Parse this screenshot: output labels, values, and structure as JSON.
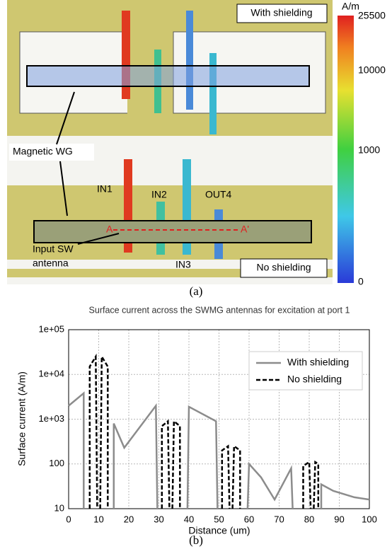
{
  "panel_a": {
    "labels": {
      "with_shielding": "With shielding",
      "magnetic_wg": "Magnetic WG",
      "in1": "IN1",
      "in2": "IN2",
      "out4": "OUT4",
      "in3": "IN3",
      "a": "A",
      "a_prime": "A'",
      "input_sw": "Input SW",
      "antenna": "antenna",
      "no_shielding": "No shielding"
    },
    "colorbar": {
      "unit": "A/m",
      "ticks": [
        25500,
        10000,
        1000,
        0
      ]
    }
  },
  "captions": [
    "(a)",
    "(b)"
  ],
  "chart_data": {
    "type": "line",
    "title": "Surface current across the SWMG antennas for excitation at port 1",
    "xlabel": "Distance (um)",
    "ylabel": "Surface current (A/m)",
    "xlim": [
      0,
      100
    ],
    "xticks": [
      0,
      10,
      20,
      30,
      40,
      50,
      60,
      70,
      80,
      90,
      100
    ],
    "ylim": [
      10,
      100000
    ],
    "ylog": true,
    "yticks": [
      10,
      100,
      {
        "value": 1000,
        "label": "1e+03"
      },
      {
        "value": 10000,
        "label": "1e+04"
      },
      {
        "value": 100000,
        "label": "1e+05"
      }
    ],
    "grid": true,
    "legend": "top-right",
    "series": [
      {
        "name": "With shielding",
        "color": "#8c8c8c",
        "dash": false,
        "x": [
          0,
          5,
          5,
          null,
          15,
          15,
          18.5,
          29,
          29.5,
          null,
          39.5,
          40,
          49,
          49.5,
          null,
          59.5,
          60,
          64,
          68.5,
          74,
          74.5,
          null,
          84,
          84,
          88,
          95,
          100
        ],
        "values": [
          2000,
          3800,
          10,
          null,
          10,
          800,
          230,
          2000,
          10,
          null,
          10,
          1900,
          900,
          10,
          null,
          10,
          100,
          50,
          16,
          80,
          10,
          null,
          10,
          35,
          25,
          18,
          16
        ]
      },
      {
        "name": "No shielding",
        "color": "#000000",
        "dash": true,
        "x": [
          7,
          7,
          9,
          9.5,
          null,
          10.5,
          11,
          13,
          13,
          null,
          31,
          31,
          33,
          33.5,
          null,
          34.5,
          35,
          37,
          37,
          null,
          51,
          51,
          53,
          53.5,
          null,
          54.5,
          55,
          57,
          57,
          null,
          78,
          78,
          80,
          80.5,
          null,
          81.5,
          82,
          83,
          83
        ],
        "values": [
          10,
          15000,
          25000,
          10,
          null,
          10,
          25000,
          15000,
          10,
          null,
          10,
          700,
          900,
          10,
          null,
          10,
          900,
          700,
          10,
          null,
          10,
          200,
          250,
          10,
          null,
          10,
          250,
          200,
          10,
          null,
          10,
          90,
          110,
          10,
          null,
          10,
          110,
          100,
          10
        ]
      }
    ]
  }
}
